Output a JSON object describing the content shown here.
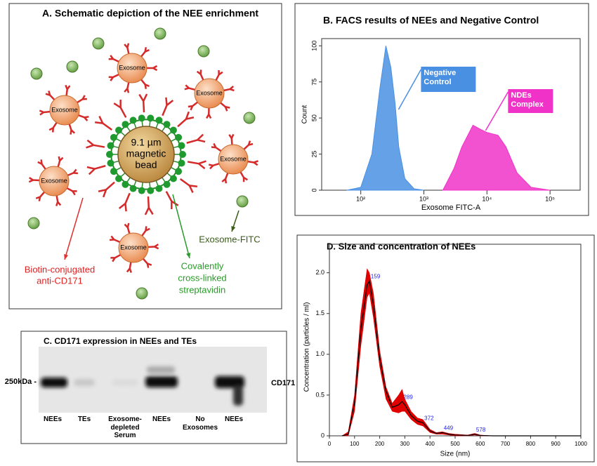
{
  "panel_a": {
    "title": "A.   Schematic depiction of the NEE enrichment",
    "exosome_labels": [
      "Exosome",
      "Exosome",
      "Exosome",
      "Exosome",
      "Exosome",
      "Exosome"
    ],
    "bead_label": [
      "9.1 µm",
      "magnetic",
      "bead"
    ],
    "biotin_label": [
      "Biotin-conjugated",
      "anti-CD171"
    ],
    "streptavidin_label": [
      "Covalently",
      "cross-linked",
      "streptavidin"
    ],
    "fitc_label": "Exosome-FITC"
  },
  "panel_c": {
    "title": "C. CD171 expression in NEEs and TEs",
    "marker": "250kDa -",
    "protein": "CD171",
    "lanes": [
      "NEEs",
      "TEs",
      "Exosome-depleted Serum",
      "NEEs",
      "No Exosomes",
      "NEEs"
    ]
  },
  "chart_data": [
    {
      "type": "area",
      "title": "B. FACS results of NEEs and Negative Control",
      "x_label": "Exosome FITC-A",
      "y_label": "Count",
      "xscale": "log",
      "xlim": [
        24,
        300000
      ],
      "ylim": [
        0,
        105
      ],
      "xticks": [
        {
          "value": 100,
          "label": "10²"
        },
        {
          "value": 1000,
          "label": "10³"
        },
        {
          "value": 10000,
          "label": "10⁴"
        },
        {
          "value": 100000,
          "label": "10⁵"
        }
      ],
      "yticks": [
        0,
        25,
        50,
        75,
        100
      ],
      "series": [
        {
          "name": "Negative Control",
          "color": "#4a90e2",
          "x": [
            60,
            100,
            150,
            200,
            250,
            300,
            350,
            400,
            500,
            700,
            1000
          ],
          "values": [
            0,
            2,
            25,
            70,
            100,
            85,
            60,
            30,
            8,
            1,
            0
          ]
        },
        {
          "name": "NDEs Complex",
          "color": "#f032c8",
          "x": [
            2000,
            3000,
            4000,
            6000,
            8000,
            10000,
            15000,
            20000,
            30000,
            50000,
            100000
          ],
          "values": [
            0,
            15,
            30,
            45,
            42,
            40,
            38,
            30,
            12,
            2,
            0
          ]
        }
      ]
    },
    {
      "type": "line",
      "title": "D. Size and concentration of NEEs",
      "x_label": "Size (nm)",
      "y_label": "Concentration (particles / ml)",
      "xlim": [
        0,
        1000
      ],
      "ylim": [
        0,
        2.35
      ],
      "xticks": [
        0,
        100,
        200,
        300,
        400,
        500,
        600,
        700,
        800,
        900,
        1000
      ],
      "yticks": [
        0,
        0.5,
        {
          "value": 1,
          "label": "1.0"
        },
        1.5,
        {
          "value": 2,
          "label": "2.0"
        }
      ],
      "x": [
        50,
        75,
        100,
        125,
        150,
        159,
        175,
        200,
        225,
        250,
        275,
        289,
        300,
        325,
        350,
        372,
        400,
        425,
        449,
        475,
        500,
        550,
        578,
        600,
        650,
        700,
        800,
        1000
      ],
      "series": [
        {
          "color": "#000000",
          "values": [
            0,
            0.02,
            0.4,
            1.3,
            1.85,
            1.9,
            1.6,
            0.95,
            0.55,
            0.35,
            0.38,
            0.42,
            0.38,
            0.25,
            0.18,
            0.16,
            0.06,
            0.03,
            0.04,
            0.02,
            0.01,
            0.005,
            0.02,
            0.005,
            0,
            0,
            0,
            0
          ]
        }
      ],
      "band": {
        "color": "#e00000",
        "upper": [
          0,
          0.05,
          0.5,
          1.5,
          2.05,
          2.0,
          1.75,
          1.05,
          0.6,
          0.4,
          0.5,
          0.57,
          0.45,
          0.3,
          0.22,
          0.2,
          0.08,
          0.04,
          0.05,
          0.03,
          0.02,
          0.01,
          0.03,
          0.01,
          0,
          0,
          0,
          0
        ],
        "lower": [
          0,
          0,
          0.3,
          1.1,
          1.7,
          1.75,
          1.45,
          0.85,
          0.45,
          0.3,
          0.28,
          0.3,
          0.3,
          0.2,
          0.14,
          0.12,
          0.04,
          0.02,
          0.02,
          0.01,
          0,
          0,
          0.01,
          0,
          0,
          0,
          0,
          0
        ]
      },
      "peak_labels": [
        159,
        289,
        372,
        449,
        578
      ],
      "peak_color": "#2222dd"
    }
  ]
}
